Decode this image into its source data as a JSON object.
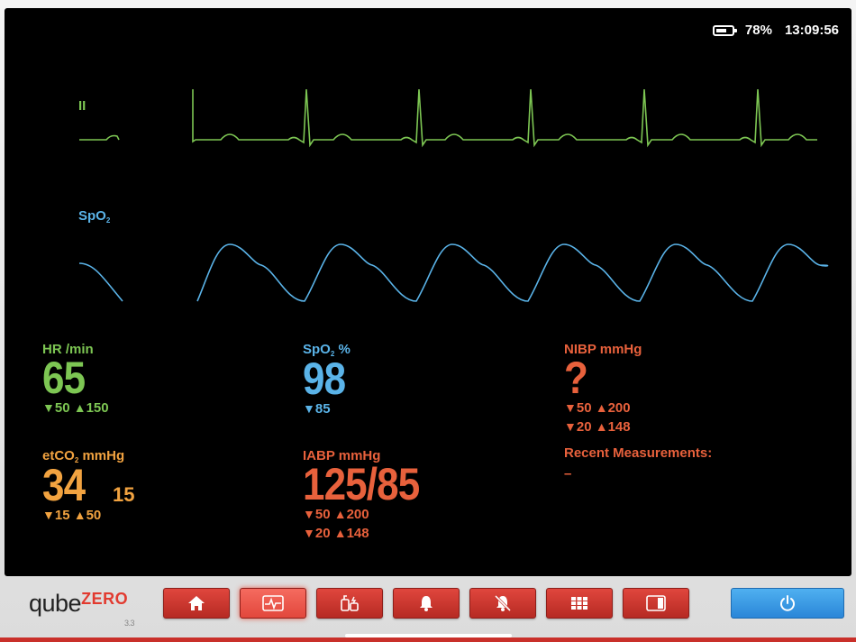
{
  "status": {
    "battery": "78%",
    "time": "13:09:56"
  },
  "waves": {
    "ecg_label": "II",
    "spo2_label": "SpO",
    "spo2_sub": "2"
  },
  "params": {
    "hr": {
      "title": "HR /min",
      "value": "65",
      "low": "50",
      "high": "150"
    },
    "spo2": {
      "title_main": "SpO",
      "title_sub": "2",
      "title_unit": " %",
      "value": "98",
      "low": "85"
    },
    "nibp": {
      "title": "NIBP mmHg",
      "value": "?",
      "sys_low": "50",
      "sys_high": "200",
      "dia_low": "20",
      "dia_high": "148",
      "recent_title": "Recent Measurements:",
      "recent_value": "–"
    },
    "etco2": {
      "title_main": "etCO",
      "title_sub": "2",
      "title_unit": " mmHg",
      "value": "34",
      "secondary": "15",
      "low": "15",
      "high": "50"
    },
    "iabp": {
      "title": "IABP mmHg",
      "value": "125/85",
      "sys_low": "50",
      "sys_high": "200",
      "dia_low": "20",
      "dia_high": "148"
    }
  },
  "symbols": {
    "down": "▼",
    "up": "▲"
  },
  "brand": {
    "name": "qube",
    "suffix": "ZERO",
    "version": "3.3"
  },
  "toolbar": {
    "buttons": [
      "home-icon",
      "vitals-waveform-icon",
      "defibrillator-icon",
      "alarm-bell-icon",
      "alarm-mute-icon",
      "grid-menu-icon",
      "panel-layout-icon"
    ],
    "active": "vitals-waveform-icon"
  },
  "colors": {
    "ecg": "#7dc653",
    "spo2": "#5ab3e8",
    "etco2": "#f2a340",
    "bp": "#e8613c",
    "accent": "#c9302a",
    "power": "#2a86d8"
  }
}
